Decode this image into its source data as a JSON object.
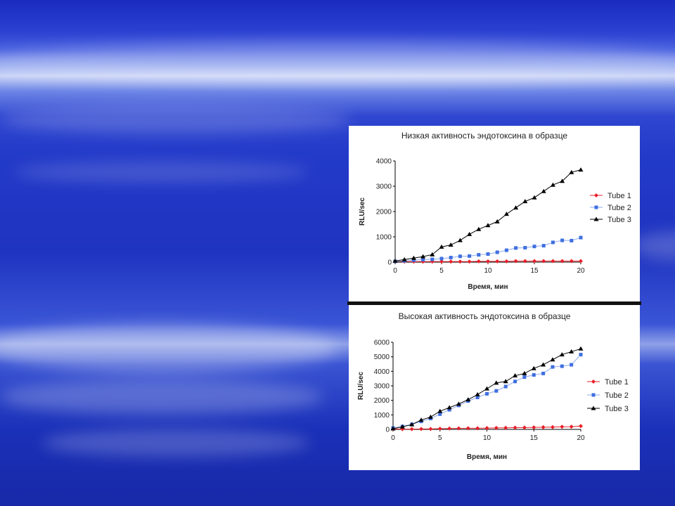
{
  "colors": {
    "tube1": "#e8202a",
    "tube2": "#3f6fe0",
    "tube2_line": "#8faaf0",
    "tube3": "#000000"
  },
  "chart_data": [
    {
      "type": "line",
      "title": "Низкая активность эндотоксина в образце",
      "xlabel": "Время,  мин",
      "ylabel": "RLU/sec",
      "xlim": [
        0,
        20
      ],
      "ylim": [
        0,
        4000
      ],
      "xticks": [
        0,
        5,
        10,
        15,
        20
      ],
      "yticks": [
        0,
        1000,
        2000,
        3000,
        4000
      ],
      "legend_position": "right",
      "x": [
        0,
        1,
        2,
        3,
        4,
        5,
        6,
        7,
        8,
        9,
        10,
        11,
        12,
        13,
        14,
        15,
        16,
        17,
        18,
        19,
        20
      ],
      "series": [
        {
          "name": "Tube 1",
          "marker": "diamond",
          "values": [
            30,
            20,
            20,
            20,
            20,
            20,
            20,
            20,
            20,
            30,
            30,
            30,
            30,
            40,
            40,
            40,
            40,
            40,
            40,
            40,
            40
          ]
        },
        {
          "name": "Tube 2",
          "marker": "square",
          "values": [
            30,
            50,
            80,
            100,
            110,
            140,
            180,
            230,
            240,
            290,
            320,
            390,
            470,
            560,
            570,
            620,
            650,
            780,
            860,
            850,
            970
          ]
        },
        {
          "name": "Tube 3",
          "marker": "triangle",
          "values": [
            50,
            100,
            160,
            220,
            300,
            600,
            680,
            860,
            1100,
            1300,
            1450,
            1600,
            1900,
            2150,
            2400,
            2550,
            2800,
            3050,
            3200,
            3550,
            3650
          ]
        }
      ]
    },
    {
      "type": "line",
      "title": "Высокая активность эндотоксина в образце",
      "xlabel": "Время, мин",
      "ylabel": "RLU/sec",
      "xlim": [
        0,
        20
      ],
      "ylim": [
        0,
        6000
      ],
      "xticks": [
        0,
        5,
        10,
        15,
        20
      ],
      "yticks": [
        0,
        1000,
        2000,
        3000,
        4000,
        5000,
        6000
      ],
      "legend_position": "right",
      "x": [
        0,
        1,
        2,
        3,
        4,
        5,
        6,
        7,
        8,
        9,
        10,
        11,
        12,
        13,
        14,
        15,
        16,
        17,
        18,
        19,
        20
      ],
      "series": [
        {
          "name": "Tube 1",
          "marker": "diamond",
          "values": [
            30,
            20,
            20,
            30,
            30,
            50,
            60,
            70,
            80,
            80,
            90,
            100,
            110,
            120,
            130,
            140,
            150,
            160,
            180,
            190,
            230
          ]
        },
        {
          "name": "Tube 2",
          "marker": "square",
          "values": [
            100,
            200,
            350,
            550,
            750,
            1050,
            1350,
            1650,
            1950,
            2200,
            2450,
            2650,
            2950,
            3300,
            3600,
            3750,
            3850,
            4300,
            4350,
            4450,
            5150
          ]
        },
        {
          "name": "Tube 3",
          "marker": "triangle",
          "values": [
            50,
            180,
            330,
            650,
            850,
            1250,
            1500,
            1750,
            2050,
            2400,
            2800,
            3200,
            3300,
            3700,
            3850,
            4200,
            4450,
            4800,
            5150,
            5350,
            5550
          ]
        }
      ]
    }
  ]
}
